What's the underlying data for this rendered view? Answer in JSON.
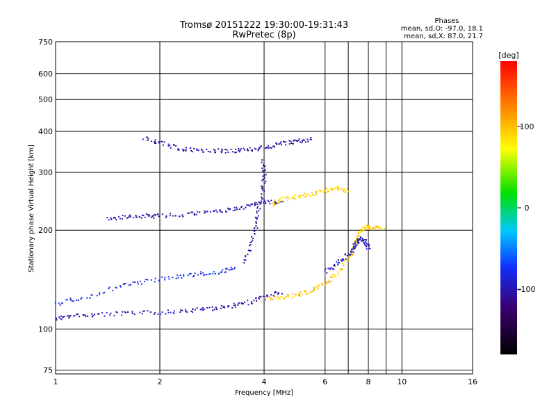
{
  "chart_data": {
    "type": "scatter",
    "title_lines": [
      "Tromsø 20151222 19:30:00-19:31:43",
      "RwPretec (8p)"
    ],
    "legend_text": {
      "heading": "Phases",
      "line1": "mean, sd,O: -97.0, 18.1",
      "line2": "mean, sd,X:  87.0, 21.7"
    },
    "xlabel": "Frequency [MHz]",
    "ylabel": "Stationary phase Virtual Height [km]",
    "x_scale": "log",
    "y_scale": "log",
    "xlim": [
      1,
      16
    ],
    "ylim": [
      73,
      750
    ],
    "x_ticks": [
      1,
      2,
      4,
      6,
      8,
      10,
      16
    ],
    "x_tick_labels": [
      "1",
      "2",
      "4",
      "6",
      "8",
      "10",
      "16"
    ],
    "x_minor_ticks": [
      7,
      9
    ],
    "y_ticks": [
      75,
      100,
      200,
      300,
      400,
      500,
      600,
      750
    ],
    "y_tick_labels": [
      "75",
      "100",
      "200",
      "300",
      "400",
      "500",
      "600",
      "750"
    ],
    "grid": true,
    "colorbar": {
      "label": "[deg]",
      "range": [
        -180,
        180
      ],
      "ticks": [
        100,
        0,
        -100
      ],
      "tick_labels": [
        "100",
        "0",
        "-100"
      ]
    },
    "series": [
      {
        "name": "O",
        "mean_phase": -97.0,
        "sd_phase": 18.1
      },
      {
        "name": "X",
        "mean_phase": 87.0,
        "sd_phase": 21.7
      }
    ],
    "traces": [
      {
        "id": "E-layer-O",
        "phase": -100,
        "points": [
          [
            1.0,
            108
          ],
          [
            1.1,
            110
          ],
          [
            1.3,
            111
          ],
          [
            1.6,
            112
          ],
          [
            2.0,
            113
          ],
          [
            2.4,
            114
          ],
          [
            2.8,
            116
          ],
          [
            3.2,
            118
          ],
          [
            3.6,
            121
          ],
          [
            4.0,
            126
          ],
          [
            4.5,
            130
          ]
        ]
      },
      {
        "id": "E-second-O",
        "phase": -100,
        "points": [
          [
            1.4,
            218
          ],
          [
            1.6,
            220
          ],
          [
            1.8,
            222
          ],
          [
            2.0,
            222
          ],
          [
            2.4,
            225
          ],
          [
            2.8,
            228
          ],
          [
            3.2,
            232
          ],
          [
            3.6,
            238
          ],
          [
            4.0,
            245
          ],
          [
            4.5,
            245
          ]
        ]
      },
      {
        "id": "E-third-O",
        "phase": -100,
        "points": [
          [
            1.8,
            385
          ],
          [
            2.0,
            370
          ],
          [
            2.3,
            355
          ],
          [
            2.6,
            352
          ],
          [
            3.0,
            350
          ],
          [
            3.4,
            352
          ],
          [
            3.8,
            356
          ],
          [
            4.2,
            362
          ],
          [
            4.6,
            370
          ],
          [
            5.0,
            375
          ],
          [
            5.5,
            380
          ]
        ]
      },
      {
        "id": "F-cusp-O",
        "phase": -105,
        "points": [
          [
            3.5,
            160
          ],
          [
            3.7,
            190
          ],
          [
            3.8,
            220
          ],
          [
            3.9,
            250
          ],
          [
            4.0,
            290
          ],
          [
            3.95,
            330
          ]
        ]
      },
      {
        "id": "F-layer-X",
        "phase": 95,
        "points": [
          [
            4.0,
            124
          ],
          [
            4.5,
            125
          ],
          [
            5.0,
            128
          ],
          [
            5.5,
            132
          ],
          [
            6.0,
            138
          ],
          [
            6.5,
            148
          ],
          [
            7.0,
            165
          ],
          [
            7.3,
            180
          ],
          [
            7.5,
            195
          ],
          [
            7.8,
            205
          ],
          [
            8.2,
            205
          ],
          [
            8.8,
            205
          ]
        ]
      },
      {
        "id": "F-upper-X",
        "phase": 90,
        "points": [
          [
            4.2,
            240
          ],
          [
            4.5,
            250
          ],
          [
            5.0,
            255
          ],
          [
            5.5,
            260
          ],
          [
            6.0,
            265
          ],
          [
            6.5,
            270
          ],
          [
            7.0,
            265
          ]
        ]
      },
      {
        "id": "F-layer-O",
        "phase": -95,
        "points": [
          [
            6.0,
            150
          ],
          [
            6.5,
            160
          ],
          [
            7.0,
            170
          ],
          [
            7.3,
            180
          ],
          [
            7.5,
            190
          ],
          [
            7.8,
            185
          ],
          [
            8.0,
            175
          ]
        ]
      },
      {
        "id": "E-sporadic-mixed",
        "phase": -80,
        "points": [
          [
            1.0,
            120
          ],
          [
            1.2,
            125
          ],
          [
            1.5,
            135
          ],
          [
            1.8,
            140
          ],
          [
            2.2,
            145
          ],
          [
            2.6,
            148
          ],
          [
            3.0,
            150
          ],
          [
            3.3,
            155
          ]
        ]
      }
    ]
  }
}
